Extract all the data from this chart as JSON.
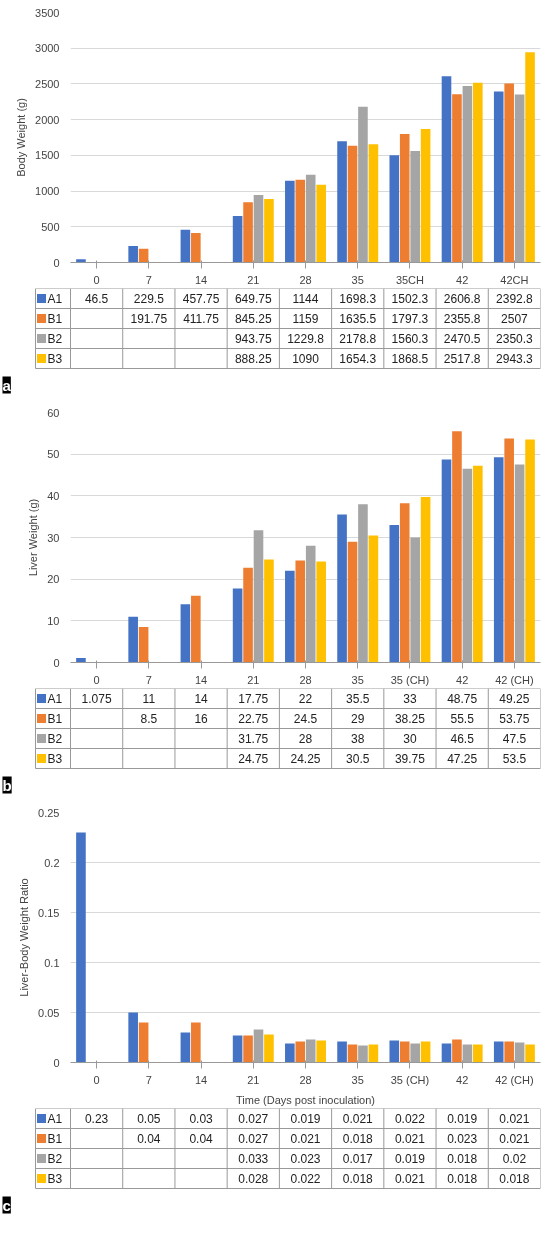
{
  "chart_data": [
    {
      "type": "bar",
      "ylabel": "Body Weight (g)",
      "categories": [
        "0",
        "7",
        "14",
        "21",
        "28",
        "35",
        "35CH",
        "42",
        "42CH"
      ],
      "ylim": [
        0,
        3500
      ],
      "yticks": [
        0,
        500,
        1000,
        1500,
        2000,
        2500,
        3000,
        3500
      ],
      "grid": "y",
      "legend": "bottom",
      "data_labels": true,
      "annotations": [
        "a"
      ],
      "series": [
        {
          "name": "A1",
          "color": "#4472c4",
          "values": [
            46.5,
            229.5,
            457.75,
            649.75,
            1144,
            1698.3,
            1502.3,
            2606.8,
            2392.8
          ]
        },
        {
          "name": "B1",
          "color": "#ed7d31",
          "values": [
            null,
            191.75,
            411.75,
            845.25,
            1159,
            1635.5,
            1797.3,
            2355.8,
            2507
          ]
        },
        {
          "name": "B2",
          "color": "#a5a5a5",
          "values": [
            null,
            null,
            null,
            943.75,
            1229.8,
            2178.8,
            1560.3,
            2470.5,
            2350.3
          ]
        },
        {
          "name": "B3",
          "color": "#ffc000",
          "values": [
            null,
            null,
            null,
            888.25,
            1090,
            1654.3,
            1868.5,
            2517.8,
            2943.3
          ]
        }
      ]
    },
    {
      "type": "bar",
      "ylabel": "Liver Weight (g)",
      "categories": [
        "0",
        "7",
        "14",
        "21",
        "28",
        "35",
        "35 (CH)",
        "42",
        "42 (CH)"
      ],
      "ylim": [
        0,
        60
      ],
      "yticks": [
        0,
        10,
        20,
        30,
        40,
        50,
        60
      ],
      "grid": "y",
      "legend": "bottom",
      "data_labels": true,
      "annotations": [
        "b"
      ],
      "series": [
        {
          "name": "A1",
          "color": "#4472c4",
          "values": [
            1.075,
            11,
            14,
            17.75,
            22,
            35.5,
            33,
            48.75,
            49.25
          ]
        },
        {
          "name": "B1",
          "color": "#ed7d31",
          "values": [
            null,
            8.5,
            16,
            22.75,
            24.5,
            29,
            38.25,
            55.5,
            53.75
          ]
        },
        {
          "name": "B2",
          "color": "#a5a5a5",
          "values": [
            null,
            null,
            null,
            31.75,
            28,
            38,
            30,
            46.5,
            47.5
          ]
        },
        {
          "name": "B3",
          "color": "#ffc000",
          "values": [
            null,
            null,
            null,
            24.75,
            24.25,
            30.5,
            39.75,
            47.25,
            53.5
          ]
        }
      ]
    },
    {
      "type": "bar",
      "ylabel": "Liver-Body Weight Ratio",
      "xlabel": "Time (Days post inoculation)",
      "categories": [
        "0",
        "7",
        "14",
        "21",
        "28",
        "35",
        "35 (CH)",
        "42",
        "42 (CH)"
      ],
      "ylim": [
        0,
        0.25
      ],
      "yticks": [
        0,
        0.05,
        0.1,
        0.15,
        0.2,
        0.25
      ],
      "grid": "y",
      "legend": "bottom",
      "data_labels": true,
      "annotations": [
        "c"
      ],
      "series": [
        {
          "name": "A1",
          "color": "#4472c4",
          "values": [
            0.23,
            0.05,
            0.03,
            0.027,
            0.019,
            0.021,
            0.022,
            0.019,
            0.021
          ]
        },
        {
          "name": "B1",
          "color": "#ed7d31",
          "values": [
            null,
            0.04,
            0.04,
            0.027,
            0.021,
            0.018,
            0.021,
            0.023,
            0.021
          ]
        },
        {
          "name": "B2",
          "color": "#a5a5a5",
          "values": [
            null,
            null,
            null,
            0.033,
            0.023,
            0.017,
            0.019,
            0.018,
            0.02
          ]
        },
        {
          "name": "B3",
          "color": "#ffc000",
          "values": [
            null,
            null,
            null,
            0.028,
            0.022,
            0.018,
            0.021,
            0.018,
            0.018
          ]
        }
      ]
    }
  ]
}
